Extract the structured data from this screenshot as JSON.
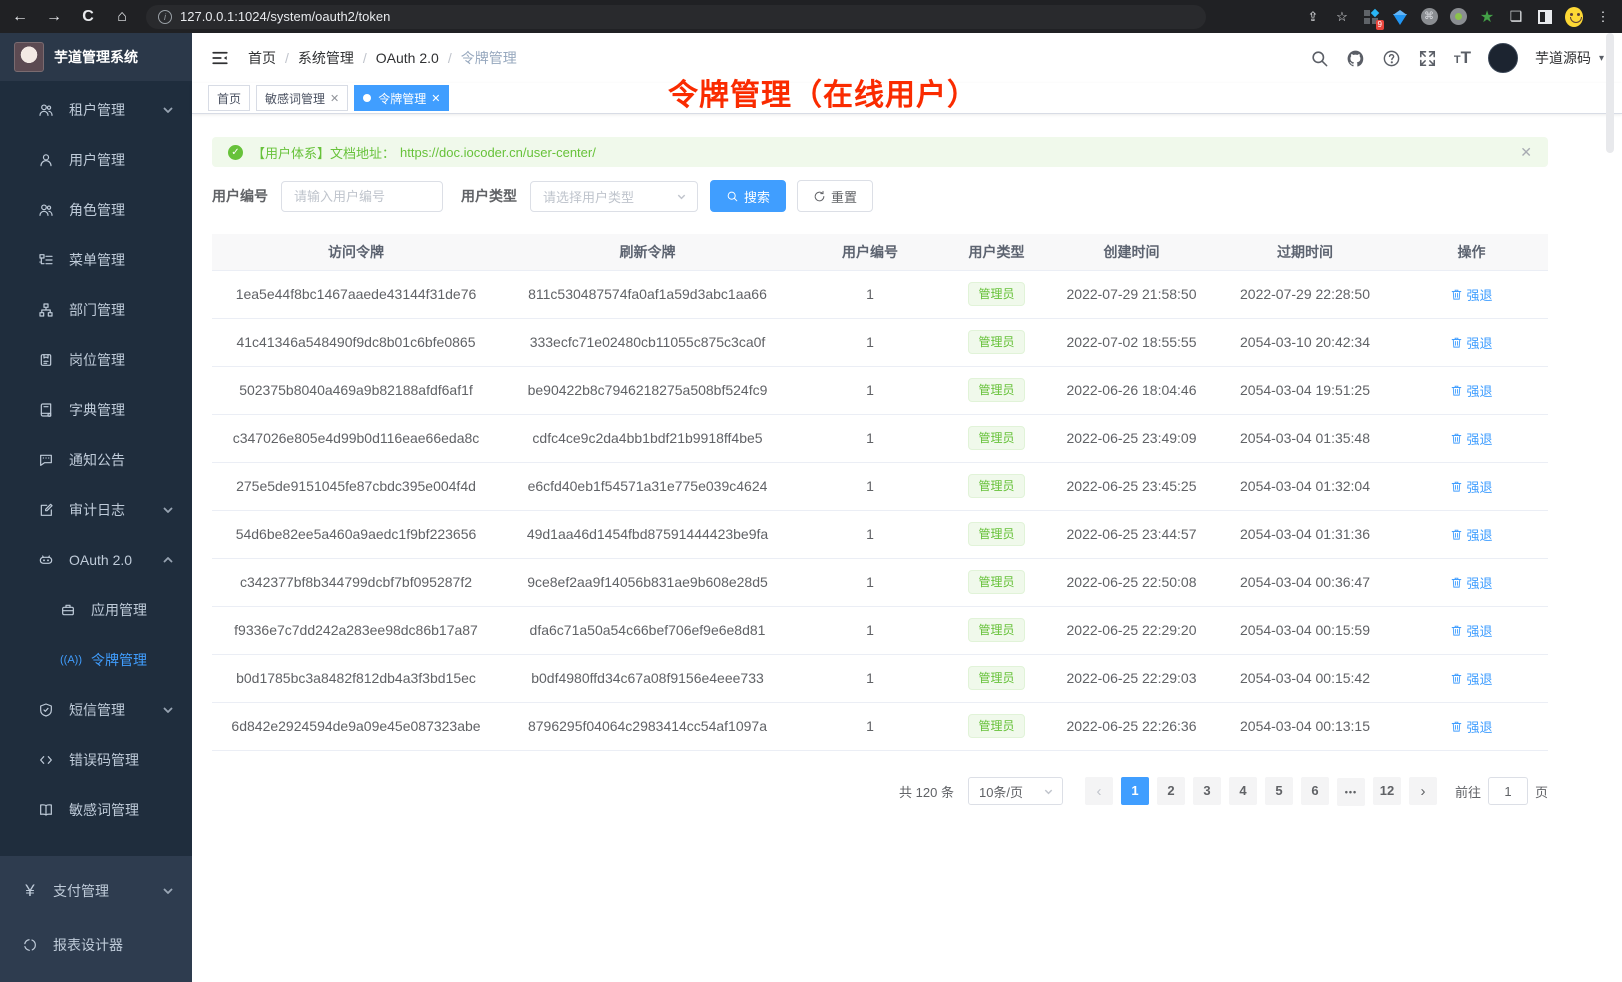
{
  "browser": {
    "url": "127.0.0.1:1024/system/oauth2/token",
    "extension_badge": "9"
  },
  "sidebar": {
    "app_title": "芋道管理系统",
    "items": [
      {
        "label": "租户管理"
      },
      {
        "label": "用户管理"
      },
      {
        "label": "角色管理"
      },
      {
        "label": "菜单管理"
      },
      {
        "label": "部门管理"
      },
      {
        "label": "岗位管理"
      },
      {
        "label": "字典管理"
      },
      {
        "label": "通知公告"
      },
      {
        "label": "审计日志"
      },
      {
        "label": "OAuth 2.0"
      },
      {
        "label": "应用管理"
      },
      {
        "label": "令牌管理"
      },
      {
        "label": "短信管理"
      },
      {
        "label": "错误码管理"
      },
      {
        "label": "敏感词管理"
      },
      {
        "label": "支付管理"
      },
      {
        "label": "报表设计器"
      }
    ]
  },
  "header": {
    "breadcrumb": [
      "首页",
      "系统管理",
      "OAuth 2.0",
      "令牌管理"
    ],
    "user_name": "芋道源码"
  },
  "tabs": [
    {
      "label": "首页"
    },
    {
      "label": "敏感词管理"
    },
    {
      "label": "令牌管理"
    }
  ],
  "annotation": "令牌管理（在线用户）",
  "alert": {
    "text": "【用户体系】文档地址：",
    "link": "https://doc.iocoder.cn/user-center/"
  },
  "filters": {
    "user_id_label": "用户编号",
    "user_id_placeholder": "请输入用户编号",
    "user_type_label": "用户类型",
    "user_type_placeholder": "请选择用户类型",
    "search_label": "搜索",
    "reset_label": "重置"
  },
  "table": {
    "columns": [
      "访问令牌",
      "刷新令牌",
      "用户编号",
      "用户类型",
      "创建时间",
      "过期时间",
      "操作"
    ],
    "action_label": "强退",
    "rows": [
      {
        "access": "1ea5e44f8bc1467aaede43144f31de76",
        "refresh": "811c530487574fa0af1a59d3abc1aa66",
        "user_id": "1",
        "user_type": "管理员",
        "created": "2022-07-29 21:58:50",
        "expires": "2022-07-29 22:28:50"
      },
      {
        "access": "41c41346a548490f9dc8b01c6bfe0865",
        "refresh": "333ecfc71e02480cb11055c875c3ca0f",
        "user_id": "1",
        "user_type": "管理员",
        "created": "2022-07-02 18:55:55",
        "expires": "2054-03-10 20:42:34"
      },
      {
        "access": "502375b8040a469a9b82188afdf6af1f",
        "refresh": "be90422b8c7946218275a508bf524fc9",
        "user_id": "1",
        "user_type": "管理员",
        "created": "2022-06-26 18:04:46",
        "expires": "2054-03-04 19:51:25"
      },
      {
        "access": "c347026e805e4d99b0d116eae66eda8c",
        "refresh": "cdfc4ce9c2da4bb1bdf21b9918ff4be5",
        "user_id": "1",
        "user_type": "管理员",
        "created": "2022-06-25 23:49:09",
        "expires": "2054-03-04 01:35:48"
      },
      {
        "access": "275e5de9151045fe87cbdc395e004f4d",
        "refresh": "e6cfd40eb1f54571a31e775e039c4624",
        "user_id": "1",
        "user_type": "管理员",
        "created": "2022-06-25 23:45:25",
        "expires": "2054-03-04 01:32:04"
      },
      {
        "access": "54d6be82ee5a460a9aedc1f9bf223656",
        "refresh": "49d1aa46d1454fbd87591444423be9fa",
        "user_id": "1",
        "user_type": "管理员",
        "created": "2022-06-25 23:44:57",
        "expires": "2054-03-04 01:31:36"
      },
      {
        "access": "c342377bf8b344799dcbf7bf095287f2",
        "refresh": "9ce8ef2aa9f14056b831ae9b608e28d5",
        "user_id": "1",
        "user_type": "管理员",
        "created": "2022-06-25 22:50:08",
        "expires": "2054-03-04 00:36:47"
      },
      {
        "access": "f9336e7c7dd242a283ee98dc86b17a87",
        "refresh": "dfa6c71a50a54c66bef706ef9e6e8d81",
        "user_id": "1",
        "user_type": "管理员",
        "created": "2022-06-25 22:29:20",
        "expires": "2054-03-04 00:15:59"
      },
      {
        "access": "b0d1785bc3a8482f812db4a3f3bd15ec",
        "refresh": "b0df4980ffd34c67a08f9156e4eee733",
        "user_id": "1",
        "user_type": "管理员",
        "created": "2022-06-25 22:29:03",
        "expires": "2054-03-04 00:15:42"
      },
      {
        "access": "6d842e2924594de9a09e45e087323abe",
        "refresh": "8796295f04064c2983414cc54af1097a",
        "user_id": "1",
        "user_type": "管理员",
        "created": "2022-06-25 22:26:36",
        "expires": "2054-03-04 00:13:15"
      }
    ]
  },
  "pagination": {
    "total_text": "共 120 条",
    "page_size": "10条/页",
    "pages": [
      "1",
      "2",
      "3",
      "4",
      "5",
      "6",
      "•••",
      "12"
    ],
    "active_page": "1",
    "goto_label": "前往",
    "goto_value": "1",
    "goto_suffix": "页"
  },
  "colors": {
    "primary": "#409eff",
    "success": "#67c23a",
    "annotation_red": "#fa2b00",
    "sidebar_bg": "#1f2d3d"
  }
}
